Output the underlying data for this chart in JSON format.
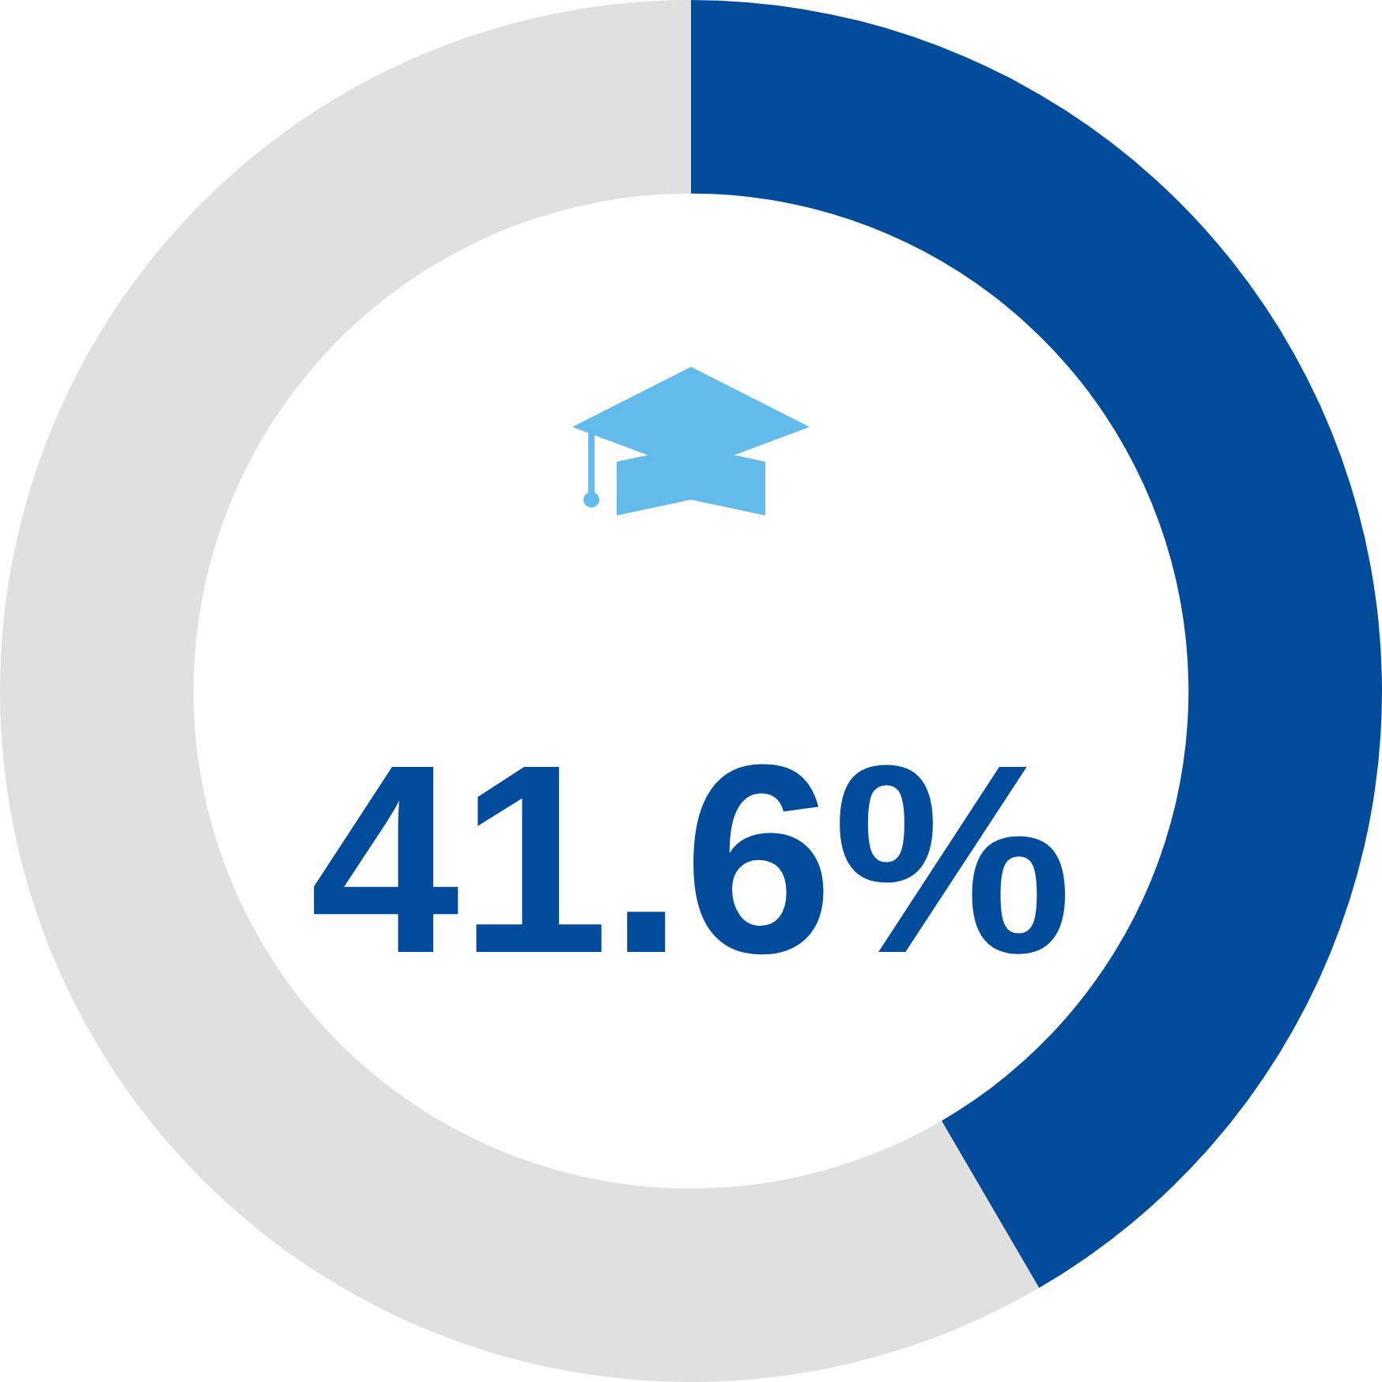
{
  "chart_data": {
    "type": "donut",
    "categories": [
      null,
      null
    ],
    "values": [
      41.6,
      58.4
    ],
    "colors": [
      "#034b9b",
      "#e0e0e0"
    ],
    "annotations": [
      "41.6%"
    ],
    "legend": false
  }
}
